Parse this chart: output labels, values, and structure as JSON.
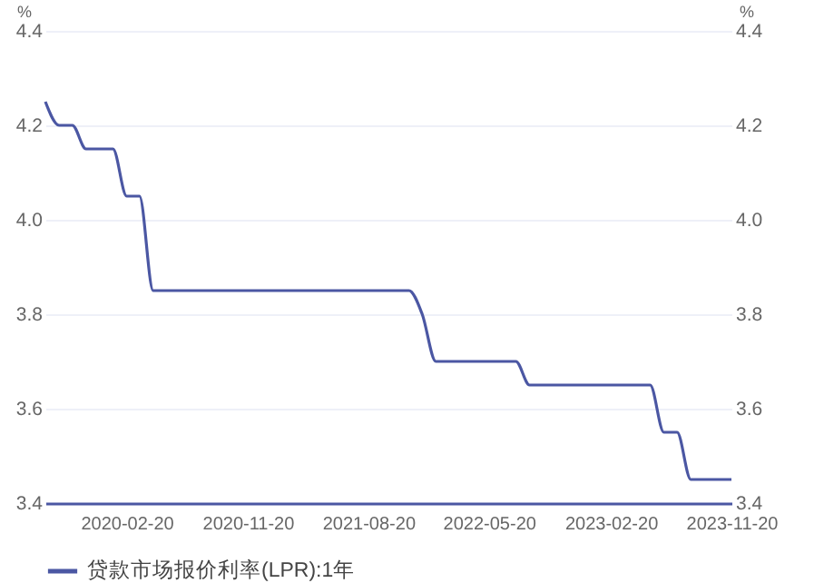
{
  "chart_data": {
    "type": "line",
    "ylabel": "%",
    "y2label": "%",
    "x": [
      "2019-08-20",
      "2019-09-20",
      "2019-10-20",
      "2019-11-20",
      "2019-12-20",
      "2020-01-20",
      "2020-02-20",
      "2020-03-20",
      "2020-04-20",
      "2020-05-20",
      "2020-06-20",
      "2020-07-20",
      "2020-08-20",
      "2020-09-20",
      "2020-10-20",
      "2020-11-20",
      "2020-12-20",
      "2021-01-20",
      "2021-02-20",
      "2021-03-20",
      "2021-04-20",
      "2021-05-20",
      "2021-06-20",
      "2021-07-20",
      "2021-08-20",
      "2021-09-20",
      "2021-10-20",
      "2021-11-20",
      "2021-12-20",
      "2022-01-20",
      "2022-02-20",
      "2022-03-20",
      "2022-04-20",
      "2022-05-20",
      "2022-06-20",
      "2022-07-20",
      "2022-08-20",
      "2022-09-20",
      "2022-10-20",
      "2022-11-20",
      "2022-12-20",
      "2023-01-20",
      "2023-02-20",
      "2023-03-20",
      "2023-04-20",
      "2023-05-20",
      "2023-06-20",
      "2023-07-20",
      "2023-08-20",
      "2023-09-20",
      "2023-10-20",
      "2023-11-20"
    ],
    "series": [
      {
        "name": "贷款市场报价利率(LPR):1年",
        "color": "#4b57a3",
        "values": [
          4.25,
          4.2,
          4.2,
          4.15,
          4.15,
          4.15,
          4.05,
          4.05,
          3.85,
          3.85,
          3.85,
          3.85,
          3.85,
          3.85,
          3.85,
          3.85,
          3.85,
          3.85,
          3.85,
          3.85,
          3.85,
          3.85,
          3.85,
          3.85,
          3.85,
          3.85,
          3.85,
          3.85,
          3.8,
          3.7,
          3.7,
          3.7,
          3.7,
          3.7,
          3.7,
          3.7,
          3.65,
          3.65,
          3.65,
          3.65,
          3.65,
          3.65,
          3.65,
          3.65,
          3.65,
          3.65,
          3.55,
          3.55,
          3.45,
          3.45,
          3.45,
          3.45
        ]
      }
    ],
    "xlim": [
      "2019-08-20",
      "2023-11-20"
    ],
    "xticks": [
      "2020-02-20",
      "2020-11-20",
      "2021-08-20",
      "2022-05-20",
      "2023-02-20",
      "2023-11-20"
    ],
    "ylim": [
      3.4,
      4.4
    ],
    "yticks": [
      3.4,
      3.6,
      3.8,
      {
        "value": 4,
        "label": "4.0"
      },
      4.2,
      4.4
    ],
    "y2lim": [
      3.4,
      4.4
    ],
    "y2ticks": [
      3.4,
      3.6,
      3.8,
      {
        "value": 4,
        "label": "4.0"
      },
      4.2,
      4.4
    ],
    "grid": "y",
    "legend": "bottom"
  }
}
